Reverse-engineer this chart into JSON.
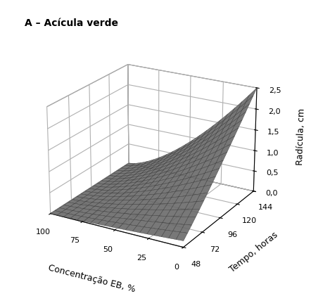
{
  "title": "A – Acícula verde",
  "xlabel": "Concentração EB, %",
  "ylabel": "Tempo, horas",
  "zlabel": "Radícula, cm",
  "x_ticks": [
    0,
    25,
    50,
    75,
    100
  ],
  "y_ticks": [
    48,
    72,
    96,
    120,
    144
  ],
  "z_ticks": [
    0.0,
    0.5,
    1.0,
    1.5,
    2.0,
    2.5
  ],
  "zlim": [
    0.0,
    2.5
  ],
  "surface_color": "#888888",
  "surface_alpha": 0.9,
  "background_color": "#ffffff",
  "figsize": [
    4.42,
    4.39
  ],
  "dpi": 100,
  "elev": 22,
  "azim": -60
}
